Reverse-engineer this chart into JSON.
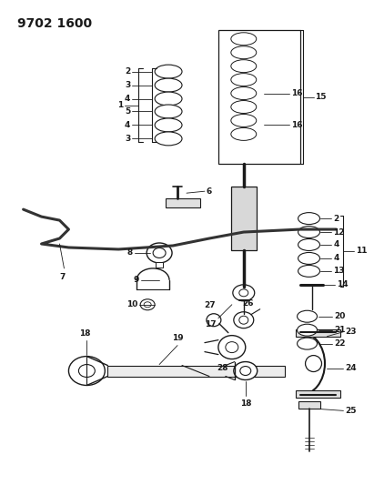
{
  "title": "9702 1600",
  "bg_color": "#ffffff",
  "lc": "#1a1a1a",
  "lfs": 6.5,
  "fig_w": 4.11,
  "fig_h": 5.33,
  "dpi": 100
}
